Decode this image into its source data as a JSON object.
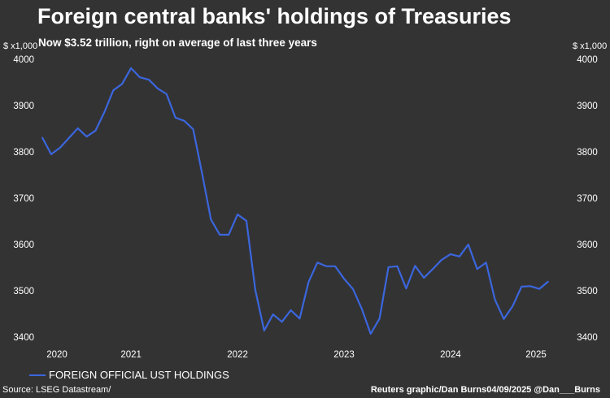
{
  "title": "Foreign central banks' holdings of Treasuries",
  "subtitle": "Now $3.52 trillion, right on average of last three years",
  "legend": {
    "label": "FOREIGN OFFICIAL UST HOLDINGS"
  },
  "source": "Source: LSEG Datastream/",
  "credit": "Reuters graphic/Dan Burns04/09/2025 @Dan___Burns",
  "chart_data": {
    "type": "line",
    "title": "Foreign central banks' holdings of Treasuries",
    "subtitle": "Now $3.52 trillion, right on average of last three years",
    "ylabel_left": "$ x1,000",
    "ylabel_right": "$ x1,000",
    "ylim": [
      3400,
      4000
    ],
    "yticks": [
      3400,
      3500,
      3600,
      3700,
      3800,
      3900,
      4000
    ],
    "xticks": [
      "2020",
      "2021",
      "2022",
      "2023",
      "2024",
      "2025"
    ],
    "grid": false,
    "legend_position": "bottom-left",
    "line_color": "#3b66dd",
    "series": [
      {
        "name": "FOREIGN OFFICIAL UST HOLDINGS",
        "x": [
          "2020-03",
          "2020-04",
          "2020-05",
          "2020-06",
          "2020-07",
          "2020-08",
          "2020-09",
          "2020-10",
          "2020-11",
          "2020-12",
          "2021-01",
          "2021-02",
          "2021-03",
          "2021-04",
          "2021-05",
          "2021-06",
          "2021-07",
          "2021-08",
          "2021-09",
          "2021-10",
          "2021-11",
          "2021-12",
          "2022-01",
          "2022-02",
          "2022-03",
          "2022-04",
          "2022-05",
          "2022-06",
          "2022-07",
          "2022-08",
          "2022-09",
          "2022-10",
          "2022-11",
          "2022-12",
          "2023-01",
          "2023-02",
          "2023-03",
          "2023-04",
          "2023-05",
          "2023-06",
          "2023-07",
          "2023-08",
          "2023-09",
          "2023-10",
          "2023-11",
          "2023-12",
          "2024-01",
          "2024-02",
          "2024-03",
          "2024-04",
          "2024-05",
          "2024-06",
          "2024-07",
          "2024-08",
          "2024-09",
          "2024-10",
          "2024-11",
          "2024-12"
        ],
        "values": [
          3831,
          3795,
          3809,
          3830,
          3851,
          3833,
          3846,
          3886,
          3933,
          3947,
          3981,
          3961,
          3956,
          3937,
          3925,
          3874,
          3867,
          3849,
          3754,
          3654,
          3621,
          3621,
          3665,
          3651,
          3502,
          3414,
          3449,
          3433,
          3458,
          3440,
          3519,
          3561,
          3553,
          3553,
          3526,
          3504,
          3461,
          3407,
          3440,
          3551,
          3553,
          3505,
          3554,
          3528,
          3547,
          3567,
          3579,
          3574,
          3600,
          3547,
          3561,
          3481,
          3439,
          3467,
          3509,
          3510,
          3504,
          3520
        ]
      }
    ]
  }
}
